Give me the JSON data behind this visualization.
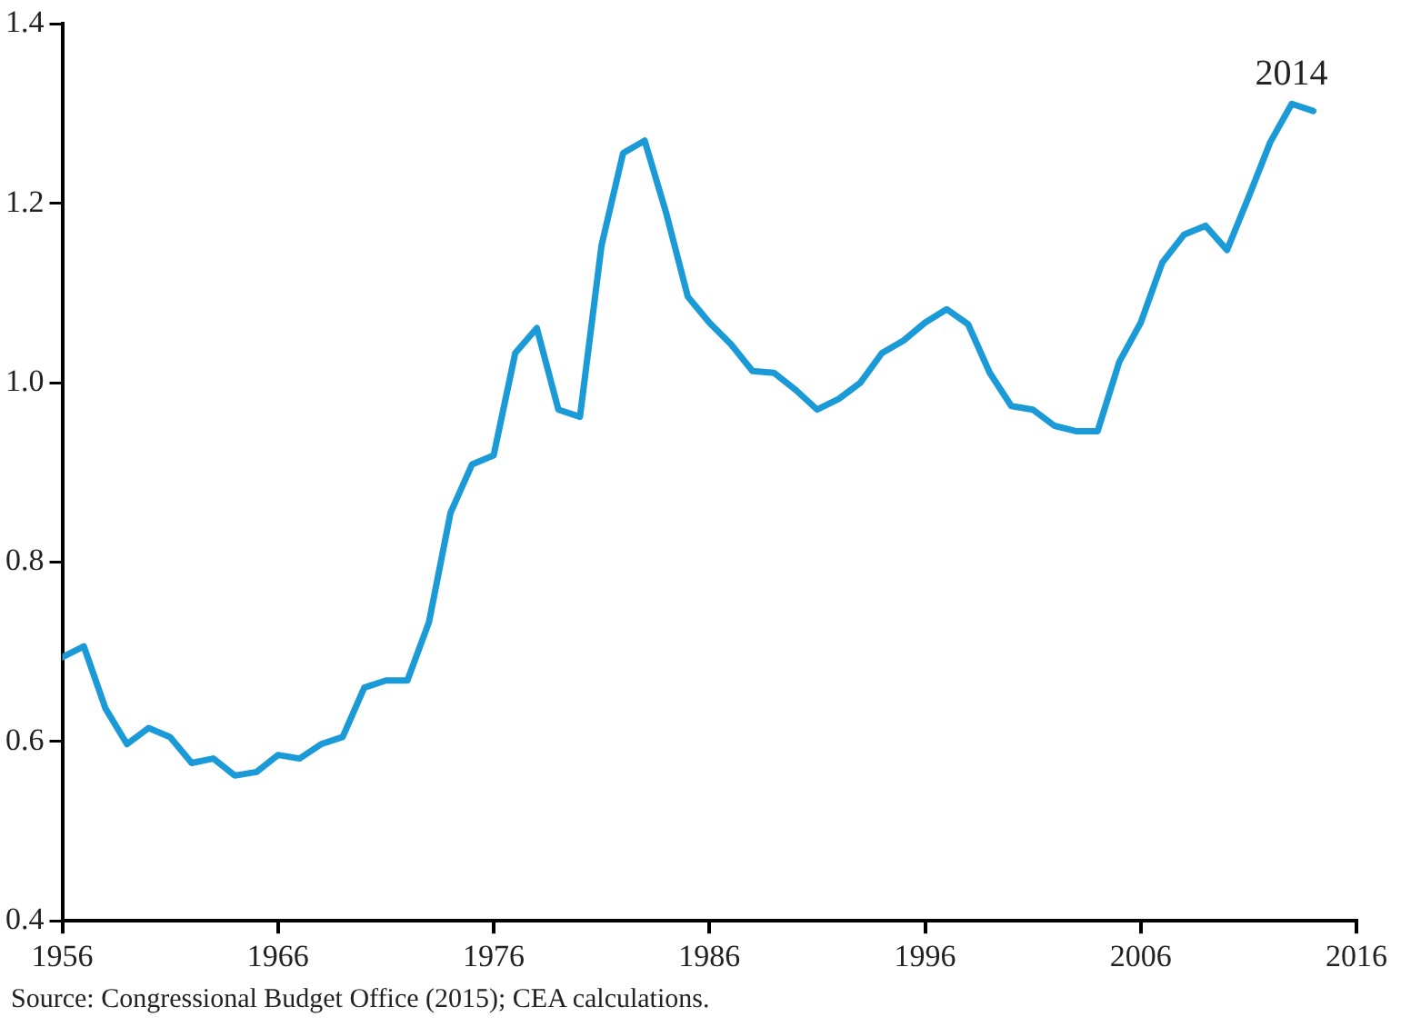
{
  "chart_data": {
    "type": "line",
    "x": [
      1956,
      1957,
      1958,
      1959,
      1960,
      1961,
      1962,
      1963,
      1964,
      1965,
      1966,
      1967,
      1968,
      1969,
      1970,
      1971,
      1972,
      1973,
      1974,
      1975,
      1976,
      1977,
      1978,
      1979,
      1980,
      1981,
      1982,
      1983,
      1984,
      1985,
      1986,
      1987,
      1988,
      1989,
      1990,
      1991,
      1992,
      1993,
      1994,
      1995,
      1996,
      1997,
      1998,
      1999,
      2000,
      2001,
      2002,
      2003,
      2004,
      2005,
      2006,
      2007,
      2008,
      2009,
      2010,
      2011,
      2012,
      2013,
      2014
    ],
    "series": [
      {
        "color": "#1a9ad6",
        "values": [
          0.694,
          0.706,
          0.637,
          0.597,
          0.615,
          0.605,
          0.576,
          0.581,
          0.562,
          0.566,
          0.585,
          0.581,
          0.597,
          0.605,
          0.66,
          0.668,
          0.668,
          0.733,
          0.855,
          0.909,
          0.919,
          1.033,
          1.061,
          0.97,
          0.962,
          1.153,
          1.256,
          1.27,
          1.189,
          1.096,
          1.067,
          1.043,
          1.013,
          1.011,
          0.992,
          0.97,
          0.982,
          1.0,
          1.033,
          1.047,
          1.067,
          1.082,
          1.065,
          1.011,
          0.974,
          0.97,
          0.952,
          0.946,
          0.946,
          1.023,
          1.067,
          1.134,
          1.165,
          1.175,
          1.148,
          1.207,
          1.268,
          1.311,
          1.303
        ]
      }
    ],
    "xlim": [
      1956,
      2016
    ],
    "xticks": [
      1956,
      1966,
      1976,
      1986,
      1996,
      2006,
      2016
    ],
    "ylim": [
      0.4,
      1.4
    ],
    "yticks": [
      {
        "value": 0.4,
        "label": "0.4"
      },
      {
        "value": 0.6,
        "label": "0.6"
      },
      {
        "value": 0.8,
        "label": "0.8"
      },
      {
        "value": 1.0,
        "label": "1.0"
      },
      {
        "value": 1.2,
        "label": "1.2"
      },
      {
        "value": 1.4,
        "label": "1.4"
      }
    ],
    "annotations": [
      {
        "text": "2014",
        "x": 2014,
        "y": 1.303
      },
      "Source: Congressional Budget Office (2015); CEA calculations."
    ],
    "grid": false,
    "legend": false,
    "marker": "none",
    "line_style": "solid"
  }
}
